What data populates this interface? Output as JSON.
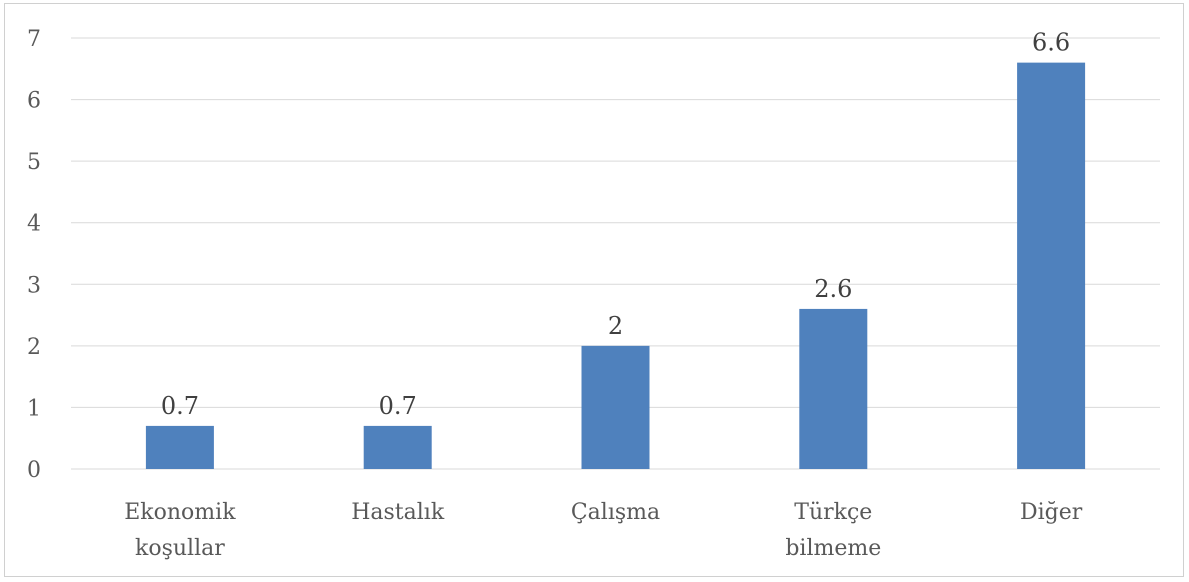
{
  "chart_data": {
    "type": "bar",
    "categories": [
      [
        "Ekonomik",
        "koşullar"
      ],
      [
        "Hastalık"
      ],
      [
        "Çalışma"
      ],
      [
        "Türkçe",
        "bilmeme"
      ],
      [
        "Diğer"
      ]
    ],
    "values": [
      0.7,
      0.7,
      2,
      2.6,
      6.6
    ],
    "data_labels": [
      "0.7",
      "0.7",
      "2",
      "2.6",
      "6.6"
    ],
    "yticks": [
      "0",
      "1",
      "2",
      "3",
      "4",
      "5",
      "6",
      "7"
    ],
    "ylim": [
      0,
      7
    ],
    "grid": true,
    "legend": "none",
    "title": "",
    "xlabel": "",
    "ylabel": "",
    "colors": {
      "bar": "#4f81bd",
      "grid": "#d9d9d9",
      "axis": "#d9d9d9",
      "tick_text": "#595959",
      "label_text": "#404040"
    }
  }
}
